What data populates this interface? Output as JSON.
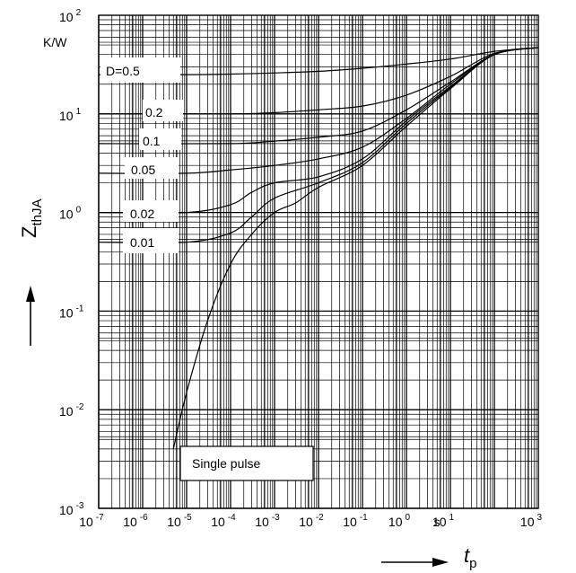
{
  "chart_data": {
    "type": "line",
    "scale": {
      "x": "log",
      "y": "log"
    },
    "xlim": [
      1e-07,
      1000
    ],
    "ylim": [
      0.001,
      100
    ],
    "grid": true,
    "xlabel": {
      "symbol": "t",
      "subscript": "p"
    },
    "ylabel": {
      "symbol": "Z",
      "subscript": "thJA"
    },
    "x_unit": "s",
    "y_unit": "K/W",
    "x_ticks": [
      {
        "base": "10",
        "exp": "-7"
      },
      {
        "base": "10",
        "exp": "-6"
      },
      {
        "base": "10",
        "exp": "-5"
      },
      {
        "base": "10",
        "exp": "-4"
      },
      {
        "base": "10",
        "exp": "-3"
      },
      {
        "base": "10",
        "exp": "-2"
      },
      {
        "base": "10",
        "exp": "-1"
      },
      {
        "base": "10",
        "exp": "0"
      },
      {
        "base": "10",
        "exp": "1"
      },
      {
        "base": "10",
        "exp": "3"
      }
    ],
    "y_ticks": [
      {
        "base": "10",
        "exp": "-3"
      },
      {
        "base": "10",
        "exp": "-2"
      },
      {
        "base": "10",
        "exp": "-1"
      },
      {
        "base": "10",
        "exp": "0"
      },
      {
        "base": "10",
        "exp": "1"
      },
      {
        "base": "10",
        "exp": "2"
      }
    ],
    "series": [
      {
        "name": "D=0.5",
        "x": [
          1e-07,
          1e-05,
          0.0001,
          0.001,
          0.01,
          0.1,
          1,
          10,
          100,
          1000
        ],
        "y": [
          25,
          25,
          25.3,
          26,
          27,
          29,
          32,
          36,
          43,
          47
        ]
      },
      {
        "name": "0.2",
        "x": [
          1e-07,
          0.0001,
          0.001,
          0.01,
          0.1,
          1,
          10,
          100,
          1000
        ],
        "y": [
          10,
          10,
          10.3,
          11,
          12,
          15.5,
          24,
          41,
          47
        ]
      },
      {
        "name": "0.1",
        "x": [
          1e-07,
          0.0001,
          0.001,
          0.01,
          0.1,
          1,
          10,
          100,
          1000
        ],
        "y": [
          5,
          5,
          5.3,
          5.8,
          6.7,
          11,
          21,
          40,
          47
        ]
      },
      {
        "name": "0.05",
        "x": [
          1e-07,
          1e-05,
          0.0001,
          0.001,
          0.01,
          0.1,
          1,
          10,
          100,
          1000
        ],
        "y": [
          2.5,
          2.5,
          2.7,
          3,
          3.5,
          4.6,
          9,
          20,
          40,
          47
        ]
      },
      {
        "name": "0.02",
        "x": [
          1e-07,
          1e-05,
          0.0001,
          0.0003,
          0.001,
          0.01,
          0.1,
          1,
          10,
          100,
          1000
        ],
        "y": [
          1,
          1,
          1.2,
          1.6,
          2,
          2.3,
          3.5,
          8.5,
          19,
          40,
          47
        ]
      },
      {
        "name": "0.01",
        "x": [
          1e-07,
          1e-05,
          0.0001,
          0.0003,
          0.001,
          0.01,
          0.1,
          1,
          10,
          100,
          1000
        ],
        "y": [
          0.5,
          0.5,
          0.62,
          0.9,
          1.4,
          2,
          3.2,
          8,
          18.5,
          40,
          47
        ]
      },
      {
        "name": "Single pulse",
        "x": [
          5e-06,
          1e-05,
          3e-05,
          0.0001,
          0.0003,
          0.001,
          0.003,
          0.01,
          0.1,
          1,
          10,
          100,
          1000
        ],
        "y": [
          0.004,
          0.015,
          0.08,
          0.3,
          0.6,
          1,
          1.25,
          1.8,
          3,
          7.5,
          18,
          40,
          47
        ]
      }
    ]
  }
}
